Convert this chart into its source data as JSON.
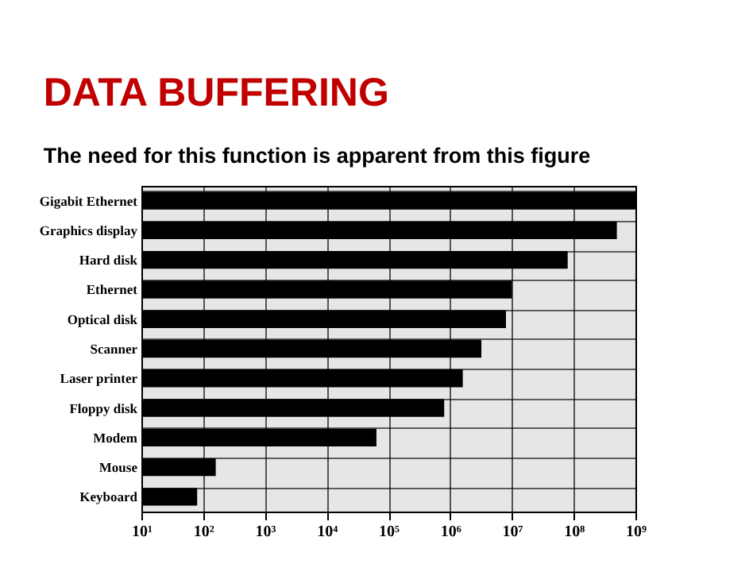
{
  "chart_data": {
    "type": "bar",
    "orientation": "horizontal",
    "title": "DATA BUFFERING",
    "subtitle": "The need for this function is apparent from this figure",
    "categories": [
      "Gigabit Ethernet",
      "Graphics display",
      "Hard disk",
      "Ethernet",
      "Optical disk",
      "Scanner",
      "Laser printer",
      "Floppy disk",
      "Modem",
      "Mouse",
      "Keyboard"
    ],
    "values": [
      1000000000,
      500000000,
      80000000,
      10000000,
      8000000,
      3200000,
      1600000,
      800000,
      64000,
      160,
      80
    ],
    "color": "#000000",
    "log": "x",
    "xlim": [
      10,
      1000000000
    ],
    "xticks": [
      {
        "value": 10,
        "label": "10¹"
      },
      {
        "value": 100,
        "label": "10²"
      },
      {
        "value": 1000,
        "label": "10³"
      },
      {
        "value": 10000,
        "label": "10⁴"
      },
      {
        "value": 100000,
        "label": "10⁵"
      },
      {
        "value": 1000000,
        "label": "10⁶"
      },
      {
        "value": 10000000,
        "label": "10⁷"
      },
      {
        "value": 100000000,
        "label": "10⁸"
      },
      {
        "value": 1000000000,
        "label": "10⁹"
      }
    ],
    "grid": true
  }
}
